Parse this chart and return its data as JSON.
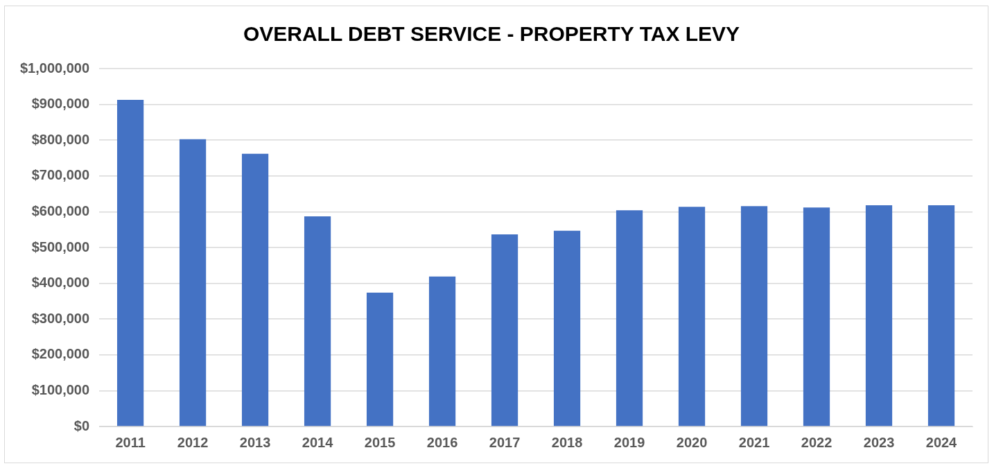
{
  "chart_data": {
    "type": "bar",
    "title": "OVERALL DEBT SERVICE - PROPERTY TAX LEVY",
    "categories": [
      "2011",
      "2012",
      "2013",
      "2014",
      "2015",
      "2016",
      "2017",
      "2018",
      "2019",
      "2020",
      "2021",
      "2022",
      "2023",
      "2024"
    ],
    "values": [
      913000,
      803000,
      762000,
      587000,
      374000,
      419000,
      537000,
      547000,
      604000,
      614000,
      616000,
      612000,
      618000,
      618000
    ],
    "color": "#4472c4",
    "ylim": [
      0,
      1000000
    ],
    "yticks": [
      {
        "value": 0,
        "label": "$0"
      },
      {
        "value": 100000,
        "label": "$100,000"
      },
      {
        "value": 200000,
        "label": "$200,000"
      },
      {
        "value": 300000,
        "label": "$300,000"
      },
      {
        "value": 400000,
        "label": "$400,000"
      },
      {
        "value": 500000,
        "label": "$500,000"
      },
      {
        "value": 600000,
        "label": "$600,000"
      },
      {
        "value": 700000,
        "label": "$700,000"
      },
      {
        "value": 800000,
        "label": "$800,000"
      },
      {
        "value": 900000,
        "label": "$900,000"
      },
      {
        "value": 1000000,
        "label": "$1,000,000"
      }
    ],
    "grid": "y",
    "legend": false
  }
}
